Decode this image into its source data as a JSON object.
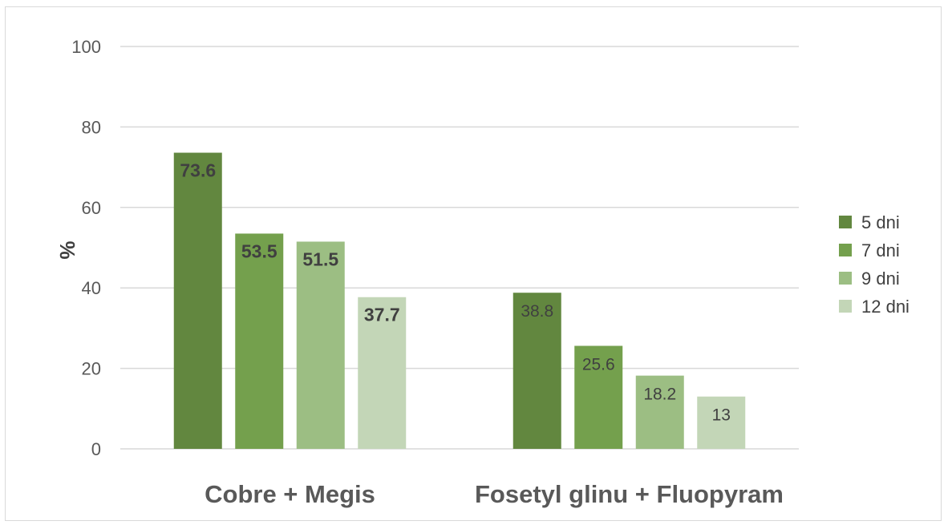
{
  "chart_data": {
    "type": "bar",
    "title": "",
    "xlabel": "",
    "ylabel": "%",
    "ylim": [
      0,
      100
    ],
    "yticks": [
      "0",
      "20",
      "40",
      "60",
      "80",
      "100"
    ],
    "categories": [
      "Cobre + Megis",
      "Fosetyl glinu + Fluopyram"
    ],
    "series": [
      {
        "name": "5 dni",
        "values": [
          73.6,
          38.8
        ],
        "labels": [
          "73.6",
          "38.8"
        ],
        "color": "#62873f"
      },
      {
        "name": "7 dni",
        "values": [
          53.5,
          25.6
        ],
        "labels": [
          "53.5",
          "25.6"
        ],
        "color": "#74a04d"
      },
      {
        "name": "9 dni",
        "values": [
          51.5,
          18.2
        ],
        "labels": [
          "51.5",
          "18.2"
        ],
        "color": "#9cbe83"
      },
      {
        "name": "12 dni",
        "values": [
          37.7,
          13
        ],
        "labels": [
          "37.7",
          "13"
        ],
        "color": "#c3d6b7"
      }
    ],
    "bold_labels_category": [
      true,
      false
    ],
    "grid": true,
    "legend_position": "right"
  }
}
